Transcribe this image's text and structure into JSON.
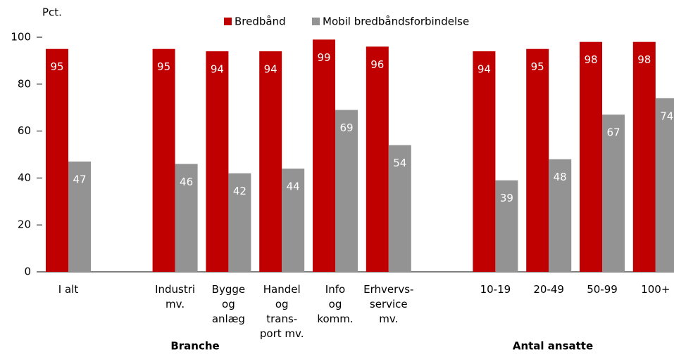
{
  "chart_data": {
    "type": "bar",
    "y_unit_label": "Pct.",
    "categories": [
      "I alt",
      null,
      "Industri\nmv.",
      "Bygge\nog\nanlæg",
      "Handel\nog\ntrans-\nport mv.",
      "Info\nog\nkomm.",
      "Erhvervs-\nservice\nmv.",
      null,
      "10-19",
      "20-49",
      "50-99",
      "100+"
    ],
    "groups": [
      "Branche",
      "Antal ansatte"
    ],
    "series": [
      {
        "name": "Bredbånd",
        "color": "#c00000",
        "values": [
          95,
          null,
          95,
          94,
          94,
          99,
          96,
          null,
          94,
          95,
          98,
          98
        ]
      },
      {
        "name": "Mobil bredbåndsforbindelse",
        "color": "#939393",
        "values": [
          47,
          null,
          46,
          42,
          44,
          69,
          54,
          null,
          39,
          48,
          67,
          74
        ]
      }
    ],
    "ylim": [
      0,
      100
    ],
    "yticks": [
      0,
      20,
      40,
      60,
      80,
      100
    ],
    "grid": false
  }
}
